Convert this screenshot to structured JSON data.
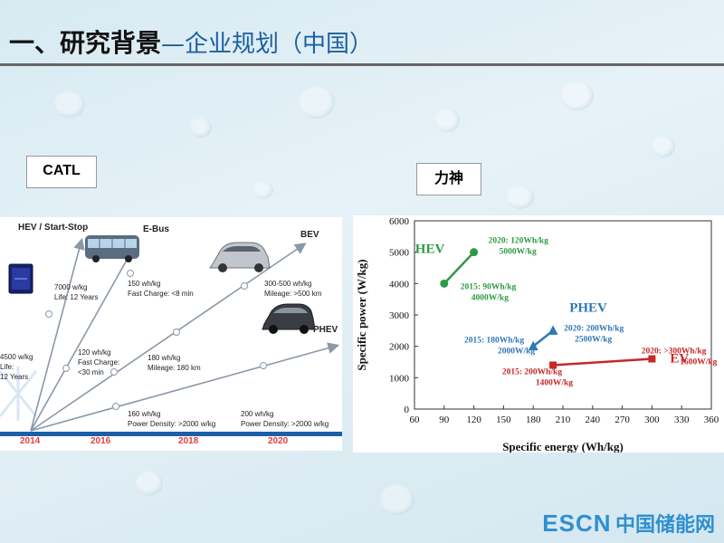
{
  "title": {
    "main": "一、研究背景",
    "sub": "—企业规划（中国）"
  },
  "tags": {
    "catl": "CATL",
    "lishen": "力神"
  },
  "catl_roadmap": {
    "years": [
      "2014",
      "2016",
      "2018",
      "2020"
    ],
    "categories": [
      {
        "label": "HEV / Start-Stop"
      },
      {
        "label": "E-Bus"
      },
      {
        "label": "BEV"
      },
      {
        "label": "PHEV"
      }
    ],
    "annotations": {
      "hev_2014": [
        "4500 w/kg",
        "Life:",
        "12 Years"
      ],
      "hev_2016": [
        "7000 w/kg",
        "Life: 12 Years"
      ],
      "ebus_2016": [
        "120 wh/kg",
        "Fast Charge:",
        "<30 min"
      ],
      "ebus_2018": [
        "150 wh/kg",
        "Fast Charge: <8 min"
      ],
      "bev_2018": [
        "180 wh/kg",
        "Mileage: 180 km"
      ],
      "bev_2020": [
        "300-500 wh/kg",
        "Mileage: >500 km"
      ],
      "phev_2016": [
        "160 wh/kg",
        "Power Density: >2000 w/kg"
      ],
      "phev_2020": [
        "200 wh/kg",
        "Power Density: >2000 w/kg"
      ]
    },
    "colors": {
      "line": "#8a98a8",
      "year": "#e04040",
      "timeline": "#1a5fa8"
    }
  },
  "chart_data": {
    "type": "line",
    "xlabel": "Specific energy (Wh/kg)",
    "ylabel": "Specific power (W/kg)",
    "xlim": [
      60,
      360
    ],
    "ylim": [
      0,
      6000
    ],
    "xticks": [
      60,
      90,
      120,
      150,
      180,
      210,
      240,
      270,
      300,
      330,
      360
    ],
    "yticks": [
      0,
      1000,
      2000,
      3000,
      4000,
      5000,
      6000
    ],
    "grid": false,
    "series": [
      {
        "name": "HEV",
        "color": "#2e9a45",
        "marker": "circle",
        "points": [
          {
            "x": 90,
            "y": 4000
          },
          {
            "x": 120,
            "y": 5000
          }
        ],
        "labels": [
          [
            "2015: 90Wh/kg",
            "4000W/kg"
          ],
          [
            "2020: 120Wh/kg",
            "5000W/kg"
          ]
        ]
      },
      {
        "name": "PHEV",
        "color": "#2e78b8",
        "marker": "triangle",
        "points": [
          {
            "x": 180,
            "y": 2000
          },
          {
            "x": 200,
            "y": 2500
          }
        ],
        "labels": [
          [
            "2015: 180Wh/kg",
            "2000W/kg"
          ],
          [
            "2020: 200Wh/kg",
            "2500W/kg"
          ]
        ]
      },
      {
        "name": "EV",
        "color": "#c82828",
        "marker": "square",
        "points": [
          {
            "x": 200,
            "y": 1400
          },
          {
            "x": 300,
            "y": 1600
          }
        ],
        "labels": [
          [
            "2015: 200Wh/kg",
            "1400W/kg"
          ],
          [
            "2020: >300Wh/kg",
            "1600W/kg"
          ]
        ]
      }
    ]
  },
  "watermark": {
    "brand": "ESCN",
    "name": "中国储能网"
  }
}
